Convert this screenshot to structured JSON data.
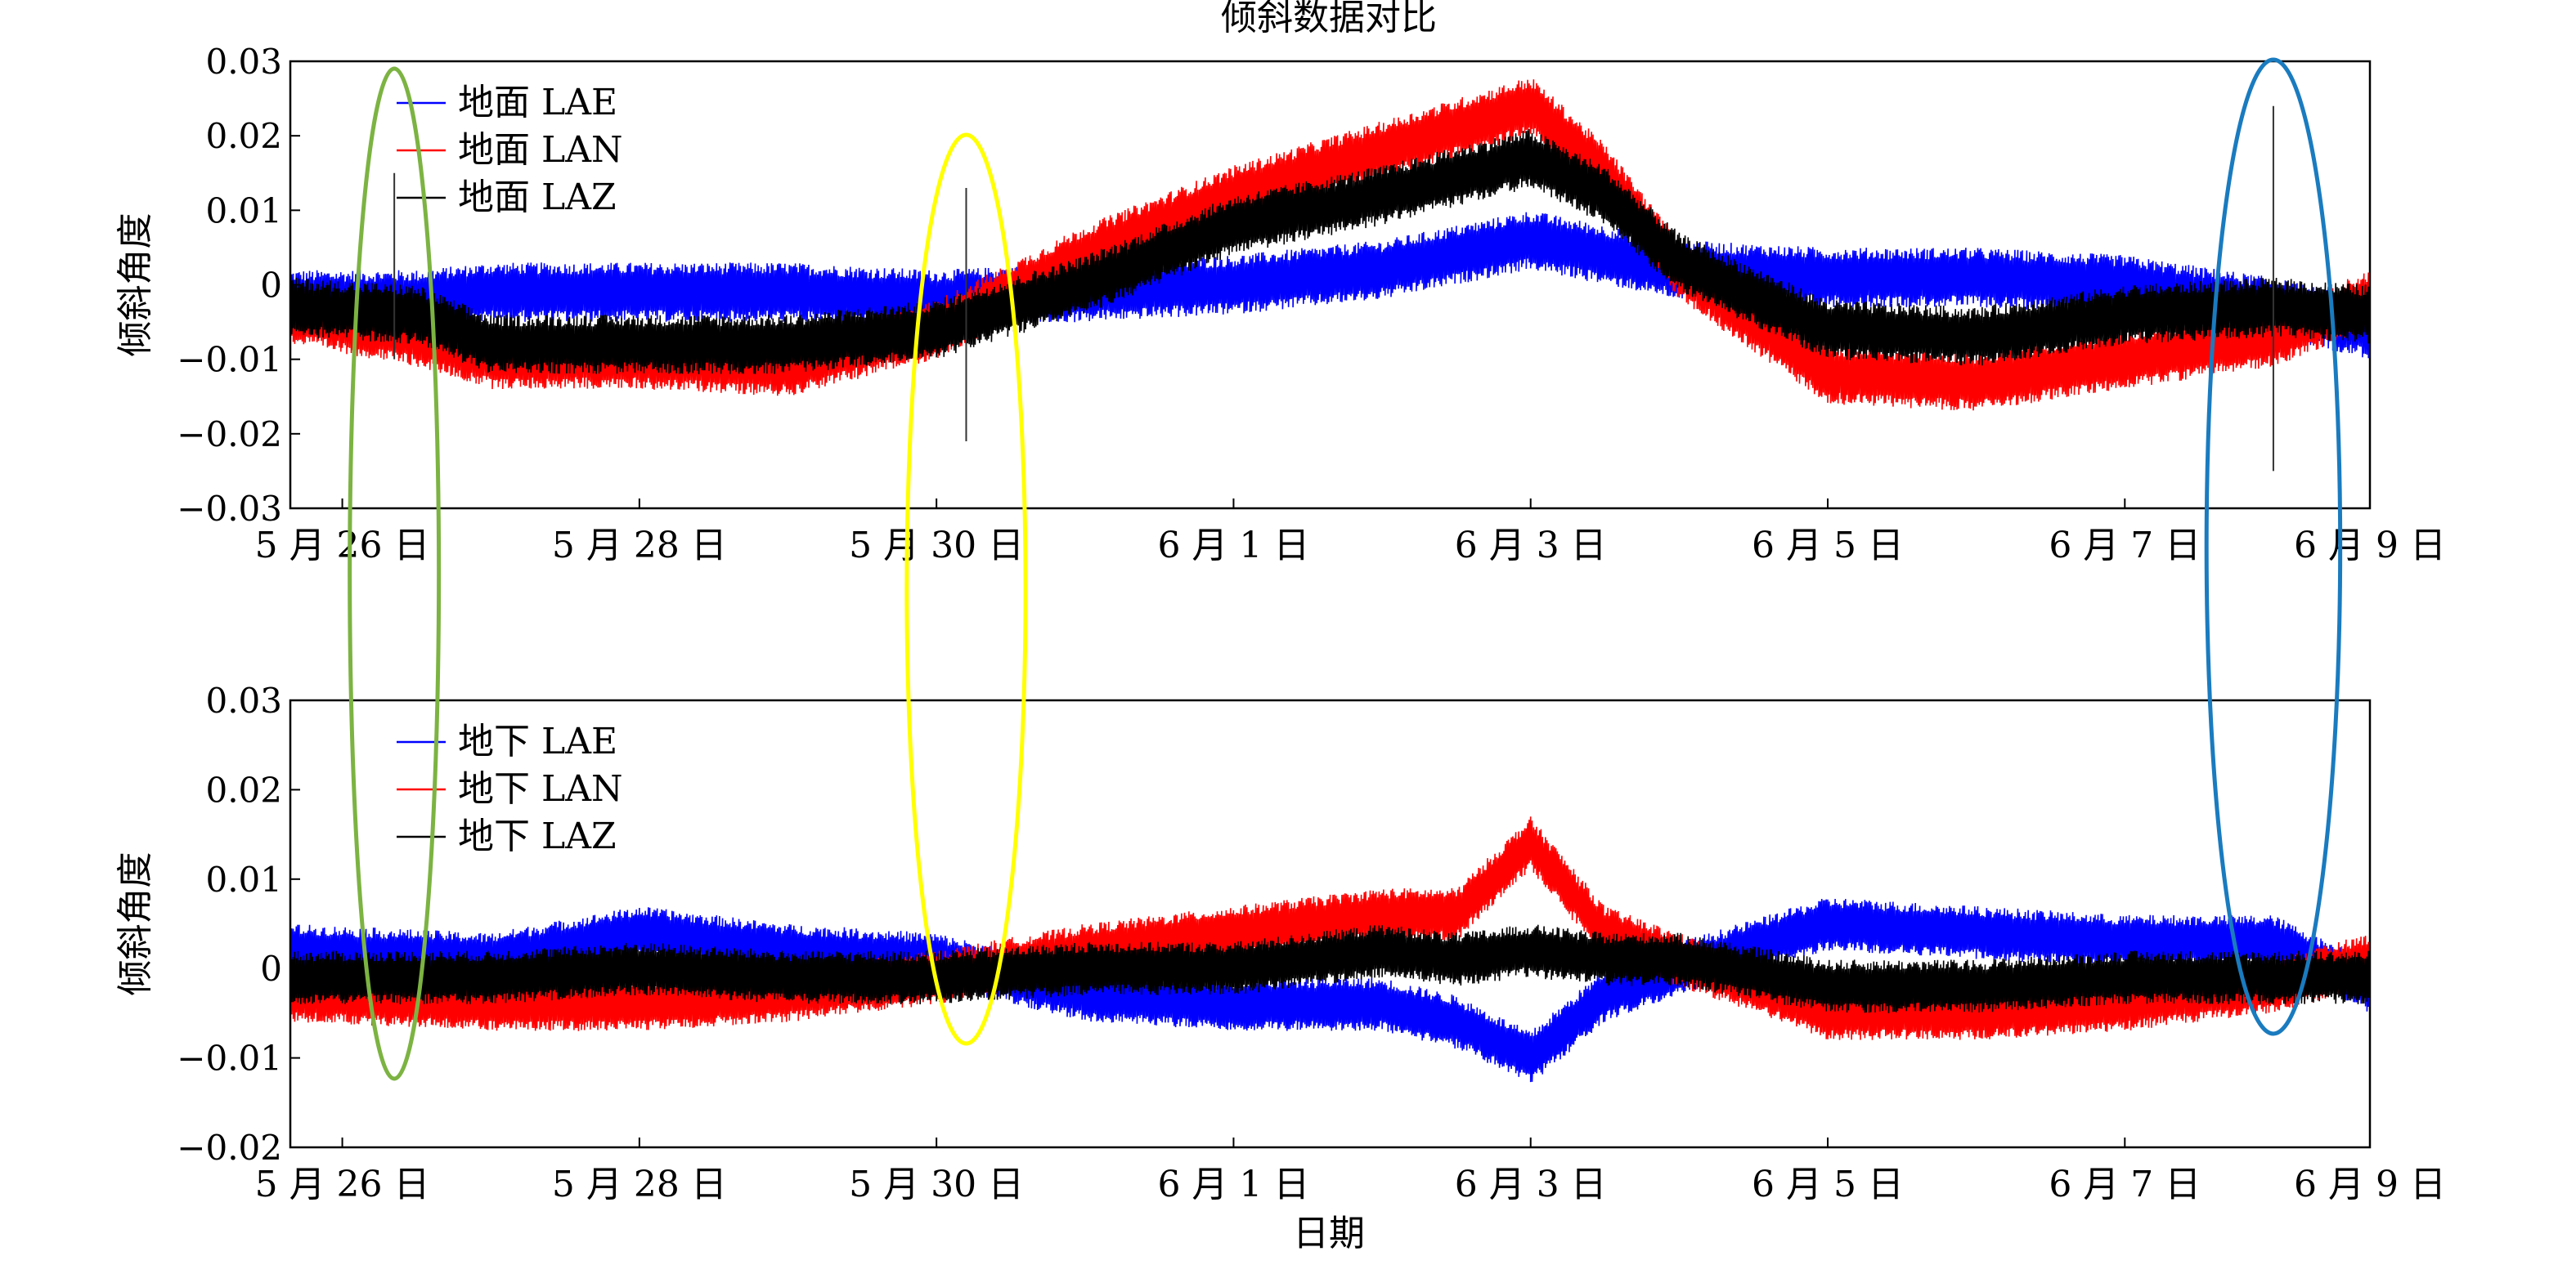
{
  "title": "倾斜数据对比",
  "xlabel": "日期",
  "colors": {
    "LAE": "#0000ff",
    "LAN": "#ff0000",
    "LAZ": "#000000",
    "green_ellipse": "#7cb342",
    "yellow_ellipse": "#ffff00",
    "blue_ellipse": "#1a7bbf"
  },
  "chart_data": [
    {
      "type": "line",
      "panel": "top",
      "ylabel": "倾斜角度",
      "ylim": [
        -0.03,
        0.03
      ],
      "yticks": [
        "0.03",
        "0.02",
        "0.01",
        "0",
        "−0.01",
        "−0.02",
        "−0.03"
      ],
      "ytick_values": [
        0.03,
        0.02,
        0.01,
        0,
        -0.01,
        -0.02,
        -0.03
      ],
      "xticks": [
        "5 月 26 日",
        "5 月 28 日",
        "5 月 30 日",
        "6 月 1 日",
        "6 月 3 日",
        "6 月 5 日",
        "6 月 7 日",
        "6 月 9 日"
      ],
      "xtick_days": [
        0,
        2,
        4,
        6,
        8,
        10,
        12,
        14
      ],
      "xlim_days": [
        -0.35,
        13.65
      ],
      "legend": "top-left",
      "series": [
        {
          "name": "地面 LAE",
          "key": "LAE",
          "x_days": [
            -0.35,
            0.5,
            1,
            2,
            3,
            4,
            5,
            6,
            7,
            8,
            8.5,
            9,
            10,
            11,
            12,
            13,
            13.65
          ],
          "center": [
            -0.002,
            -0.002,
            -0.001,
            -0.001,
            -0.001,
            -0.002,
            -0.001,
            0.0,
            0.002,
            0.006,
            0.004,
            0.002,
            0.001,
            0.001,
            0.0,
            -0.003,
            -0.006
          ],
          "amplitude": [
            0.004,
            0.004,
            0.004,
            0.004,
            0.004,
            0.004,
            0.004,
            0.004,
            0.004,
            0.004,
            0.004,
            0.004,
            0.004,
            0.004,
            0.004,
            0.004,
            0.004
          ]
        },
        {
          "name": "地面 LAN",
          "key": "LAN",
          "x_days": [
            -0.35,
            0.5,
            1,
            2,
            3,
            4,
            5,
            6,
            7,
            8,
            8.5,
            9,
            10,
            11,
            12,
            13,
            13.65
          ],
          "center": [
            -0.004,
            -0.007,
            -0.01,
            -0.01,
            -0.011,
            -0.006,
            0.004,
            0.012,
            0.018,
            0.024,
            0.015,
            0.002,
            -0.012,
            -0.013,
            -0.01,
            -0.007,
            -0.002
          ],
          "amplitude": [
            0.004,
            0.004,
            0.004,
            0.004,
            0.004,
            0.004,
            0.004,
            0.004,
            0.004,
            0.004,
            0.004,
            0.004,
            0.004,
            0.004,
            0.004,
            0.004,
            0.004
          ]
        },
        {
          "name": "地面 LAZ",
          "key": "LAZ",
          "x_days": [
            -0.35,
            0.5,
            1,
            2,
            3,
            4,
            5,
            6,
            7,
            8,
            8.5,
            9,
            10,
            11,
            12,
            13,
            13.65
          ],
          "center": [
            -0.003,
            -0.004,
            -0.008,
            -0.008,
            -0.008,
            -0.006,
            0.0,
            0.008,
            0.012,
            0.017,
            0.012,
            0.003,
            -0.006,
            -0.007,
            -0.004,
            -0.003,
            -0.004
          ],
          "amplitude": [
            0.004,
            0.004,
            0.004,
            0.004,
            0.004,
            0.004,
            0.004,
            0.004,
            0.004,
            0.004,
            0.004,
            0.004,
            0.004,
            0.004,
            0.004,
            0.004,
            0.004
          ]
        }
      ],
      "spikes": [
        {
          "day": 0.35,
          "low": -0.01,
          "high": 0.015
        },
        {
          "day": 4.2,
          "low": -0.021,
          "high": 0.013
        },
        {
          "day": 13.0,
          "low": -0.025,
          "high": 0.024
        }
      ]
    },
    {
      "type": "line",
      "panel": "bottom",
      "ylabel": "倾斜角度",
      "ylim": [
        -0.02,
        0.03
      ],
      "yticks": [
        "0.03",
        "0.02",
        "0.01",
        "0",
        "−0.01",
        "−0.02"
      ],
      "ytick_values": [
        0.03,
        0.02,
        0.01,
        0,
        -0.01,
        -0.02
      ],
      "xticks": [
        "5 月 26 日",
        "5 月 28 日",
        "5 月 30 日",
        "6 月 1 日",
        "6 月 3 日",
        "6 月 5 日",
        "6 月 7 日",
        "6 月 9 日"
      ],
      "xtick_days": [
        0,
        2,
        4,
        6,
        8,
        10,
        12,
        14
      ],
      "xlim_days": [
        -0.35,
        13.65
      ],
      "legend": "top-left",
      "series": [
        {
          "name": "地下 LAE",
          "key": "LAE",
          "x_days": [
            -0.35,
            1,
            2,
            3,
            4,
            5,
            6,
            7,
            7.5,
            8,
            8.5,
            9,
            10,
            11,
            12,
            13,
            13.65
          ],
          "center": [
            0.002,
            0.001,
            0.004,
            0.002,
            0.001,
            -0.003,
            -0.004,
            -0.004,
            -0.006,
            -0.01,
            -0.003,
            0.0,
            0.005,
            0.004,
            0.003,
            0.003,
            -0.002
          ],
          "amplitude": [
            0.003,
            0.003,
            0.003,
            0.003,
            0.003,
            0.003,
            0.003,
            0.003,
            0.003,
            0.003,
            0.003,
            0.003,
            0.003,
            0.003,
            0.003,
            0.003,
            0.003
          ]
        },
        {
          "name": "地下 LAN",
          "key": "LAN",
          "x_days": [
            -0.35,
            1,
            2,
            3,
            4,
            5,
            6,
            7,
            7.5,
            8,
            8.5,
            9,
            10,
            11,
            12,
            13,
            13.65
          ],
          "center": [
            -0.003,
            -0.004,
            -0.004,
            -0.003,
            -0.001,
            0.002,
            0.004,
            0.006,
            0.006,
            0.014,
            0.004,
            0.001,
            -0.005,
            -0.005,
            -0.004,
            -0.002,
            0.001
          ],
          "amplitude": [
            0.003,
            0.003,
            0.003,
            0.003,
            0.003,
            0.003,
            0.003,
            0.003,
            0.003,
            0.003,
            0.003,
            0.003,
            0.003,
            0.003,
            0.003,
            0.003,
            0.003
          ]
        },
        {
          "name": "地下 LAZ",
          "key": "LAZ",
          "x_days": [
            -0.35,
            1,
            2,
            3,
            4,
            5,
            6,
            7,
            7.5,
            8,
            8.5,
            9,
            10,
            11,
            12,
            13,
            13.65
          ],
          "center": [
            -0.001,
            -0.001,
            0.0,
            -0.001,
            -0.001,
            0.0,
            0.0,
            0.002,
            0.001,
            0.002,
            0.001,
            0.001,
            -0.002,
            -0.002,
            -0.001,
            -0.001,
            -0.001
          ],
          "amplitude": [
            0.003,
            0.003,
            0.003,
            0.003,
            0.003,
            0.003,
            0.003,
            0.003,
            0.003,
            0.003,
            0.003,
            0.003,
            0.003,
            0.003,
            0.003,
            0.003,
            0.003
          ]
        }
      ]
    }
  ],
  "annotations": [
    {
      "type": "ellipse",
      "color_key": "green_ellipse",
      "center_day": 0.35,
      "rx_days": 0.3,
      "span": "both-panels"
    },
    {
      "type": "ellipse",
      "color_key": "yellow_ellipse",
      "center_day": 4.2,
      "rx_days": 0.4,
      "span": "both-panels"
    },
    {
      "type": "ellipse",
      "color_key": "blue_ellipse",
      "center_day": 13.0,
      "rx_days": 0.45,
      "span": "both-panels"
    }
  ]
}
